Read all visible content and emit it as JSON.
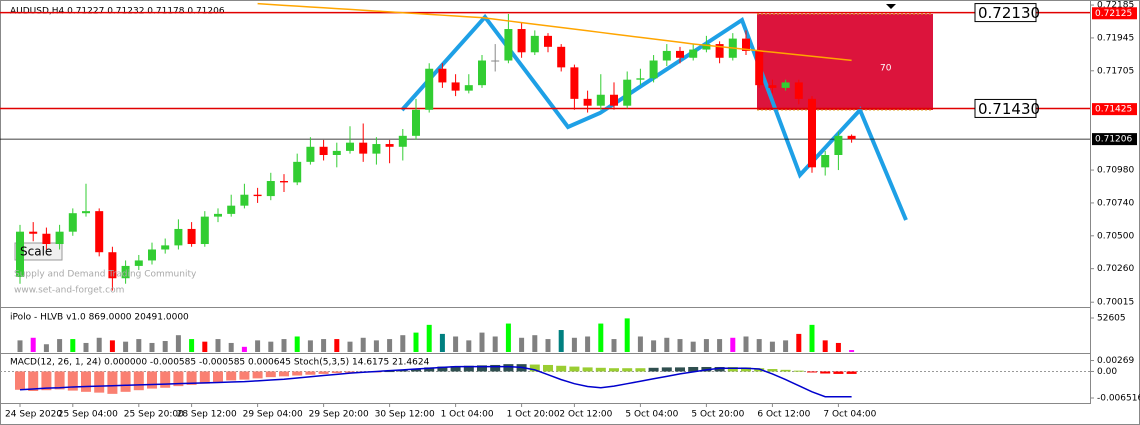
{
  "chart_data": [
    {
      "type": "candlestick",
      "title": "AUDUSD,H4  0.71227 0.71232 0.71178 0.71206",
      "categories": [
        "24 Sep 2020",
        null,
        null,
        null,
        "25 Sep 04:00",
        null,
        null,
        null,
        null,
        "25 Sep 20:00",
        null,
        null,
        null,
        "28 Sep 12:00",
        null,
        null,
        null,
        null,
        "29 Sep 04:00",
        null,
        null,
        null,
        null,
        "29 Sep 20:00",
        null,
        null,
        null,
        null,
        "30 Sep 12:00",
        null,
        null,
        null,
        null,
        "1 Oct 04:00",
        null,
        null,
        null,
        null,
        "1 Oct 20:00",
        null,
        null,
        null,
        "2 Oct 12:00",
        null,
        null,
        null,
        null,
        "5 Oct 04:00",
        null,
        null,
        null,
        null,
        "5 Oct 20:00",
        null,
        null,
        null,
        null,
        "6 Oct 12:00",
        null,
        null,
        null,
        null,
        "7 Oct 04:00",
        null
      ],
      "open": [
        0.702,
        0.7053,
        0.70515,
        0.7044,
        0.7053,
        0.70665,
        0.7068,
        0.7038,
        0.7019,
        0.7028,
        0.7032,
        0.704,
        0.7043,
        0.7055,
        0.7044,
        0.7064,
        0.7066,
        0.7072,
        0.708,
        0.7079,
        0.709,
        0.7089,
        0.7104,
        0.7115,
        0.7109,
        0.7112,
        0.7118,
        0.711,
        0.7117,
        0.7115,
        0.7123,
        0.7142,
        0.7172,
        0.7162,
        0.7156,
        0.716,
        0.7178,
        0.7178,
        0.7201,
        0.7184,
        0.7196,
        0.7188,
        0.7173,
        0.715,
        0.7145,
        0.7153,
        0.7145,
        0.7164,
        0.7165,
        0.7178,
        0.7185,
        0.718,
        0.7186,
        0.719,
        0.718,
        0.7194,
        0.7185,
        0.716,
        0.7158,
        0.7162,
        0.715,
        0.71,
        0.7109,
        0.7123
      ],
      "high": [
        0.7058,
        0.706,
        0.7056,
        0.7058,
        0.707,
        0.7088,
        0.707,
        0.7042,
        0.7032,
        0.7036,
        0.7045,
        0.7048,
        0.7062,
        0.706,
        0.7068,
        0.707,
        0.708,
        0.7088,
        0.7085,
        0.7096,
        0.7095,
        0.711,
        0.7122,
        0.712,
        0.7118,
        0.713,
        0.7132,
        0.7122,
        0.712,
        0.7128,
        0.715,
        0.7176,
        0.7176,
        0.7168,
        0.7168,
        0.7182,
        0.719,
        0.7212,
        0.7206,
        0.72,
        0.7198,
        0.719,
        0.7175,
        0.7156,
        0.7168,
        0.7162,
        0.717,
        0.7172,
        0.7182,
        0.719,
        0.7188,
        0.719,
        0.7196,
        0.7192,
        0.7198,
        0.72,
        0.7188,
        0.7164,
        0.7164,
        0.7164,
        0.7152,
        0.7112,
        0.7126,
        0.7124
      ],
      "low": [
        0.7015,
        0.7046,
        0.704,
        0.704,
        0.705,
        0.7064,
        0.7035,
        0.701,
        0.7015,
        0.7025,
        0.7029,
        0.7037,
        0.704,
        0.7042,
        0.7042,
        0.706,
        0.7064,
        0.707,
        0.7074,
        0.7076,
        0.7082,
        0.7087,
        0.7102,
        0.7105,
        0.71,
        0.711,
        0.7104,
        0.7102,
        0.7103,
        0.7105,
        0.712,
        0.714,
        0.7158,
        0.7152,
        0.7154,
        0.7158,
        0.717,
        0.7176,
        0.718,
        0.7182,
        0.7184,
        0.717,
        0.7142,
        0.714,
        0.7142,
        0.7142,
        0.7143,
        0.716,
        0.7162,
        0.7174,
        0.7176,
        0.7178,
        0.7184,
        0.7176,
        0.7178,
        0.7182,
        0.7158,
        0.7154,
        0.7156,
        0.7146,
        0.7096,
        0.7094,
        0.7098,
        0.7118
      ],
      "close": [
        0.7053,
        0.70515,
        0.7044,
        0.7053,
        0.70665,
        0.7068,
        0.7038,
        0.7019,
        0.7028,
        0.7032,
        0.704,
        0.7043,
        0.7055,
        0.7044,
        0.7064,
        0.7066,
        0.7072,
        0.708,
        0.7079,
        0.709,
        0.7089,
        0.7104,
        0.7115,
        0.7109,
        0.7112,
        0.7118,
        0.711,
        0.7117,
        0.7115,
        0.7123,
        0.7142,
        0.7172,
        0.7162,
        0.7156,
        0.716,
        0.7178,
        0.7178,
        0.7201,
        0.7184,
        0.7196,
        0.7188,
        0.7173,
        0.715,
        0.7145,
        0.7153,
        0.7145,
        0.7164,
        0.7165,
        0.7178,
        0.7185,
        0.718,
        0.7186,
        0.719,
        0.718,
        0.7194,
        0.7185,
        0.716,
        0.7158,
        0.7162,
        0.715,
        0.71,
        0.7109,
        0.7123,
        0.71206
      ],
      "up_color": "#32cd32",
      "down_color": "#ff0000",
      "ma": {
        "color": "#ffa500",
        "values": [
          null,
          null,
          null,
          null,
          null,
          null,
          null,
          null,
          null,
          null,
          null,
          null,
          null,
          null,
          null,
          null,
          null,
          null,
          0.72195,
          0.72189,
          0.72183,
          0.72177,
          0.72171,
          0.72165,
          0.72159,
          0.72153,
          0.72147,
          0.72141,
          0.72135,
          0.72129,
          0.72123,
          0.72117,
          0.72111,
          0.72105,
          0.72099,
          0.72093,
          0.72081,
          0.72069,
          0.72057,
          0.72045,
          0.72033,
          0.72021,
          0.72009,
          0.71997,
          0.71985,
          0.71973,
          0.71961,
          0.71949,
          0.71937,
          0.71925,
          0.71913,
          0.71901,
          0.71891,
          0.71881,
          0.71871,
          0.71861,
          0.71851,
          0.71841,
          0.71831,
          0.71821,
          0.71811,
          0.71801,
          0.71791,
          0.71781
        ]
      },
      "ylim": [
        0.6998,
        0.722
      ],
      "yticks": [
        0.72185,
        0.71945,
        0.71705,
        {
          "value": 0.7098,
          "label": "0.70980"
        },
        {
          "value": 0.7074,
          "label": "0.70740"
        },
        {
          "value": 0.705,
          "label": "0.70500"
        },
        {
          "value": 0.7026,
          "label": "0.70260"
        },
        0.70015
      ],
      "price_tags": [
        {
          "value": 0.72125,
          "color": "#ff0000"
        },
        {
          "value": 0.71425,
          "color": "#ff0000"
        },
        {
          "value": 0.71206,
          "color": "#000000"
        }
      ],
      "levels": [
        {
          "value": 0.7213,
          "label": "0.72130"
        },
        {
          "value": 0.7143,
          "label": "0.71430"
        }
      ],
      "annotations": [
        "Scale",
        "Supply and Demand Trading Community",
        "www.set-and-forget.com",
        "70"
      ]
    },
    {
      "type": "bar",
      "title": "iPolo - HLVB v1.0 869.0000 20491.0000",
      "values": [
        18000,
        22000,
        12000,
        20000,
        20000,
        14000,
        22000,
        18000,
        16000,
        20000,
        14000,
        17000,
        26000,
        20000,
        16000,
        20000,
        14000,
        8000,
        18000,
        16000,
        20000,
        24000,
        18000,
        20000,
        20000,
        16000,
        22000,
        18000,
        20000,
        26000,
        30000,
        42000,
        28000,
        24000,
        18000,
        30000,
        24000,
        44000,
        22000,
        26000,
        20000,
        34000,
        22000,
        24000,
        44000,
        20000,
        52000,
        24000,
        18000,
        22000,
        20000,
        16000,
        20000,
        20000,
        22000,
        24000,
        20000,
        16000,
        18000,
        28000,
        42000,
        18000,
        14000,
        3000
      ],
      "colors": [
        "#808080",
        "#ff00ff",
        "#808080",
        "#808080",
        "#00ff00",
        "#808080",
        "#808080",
        "#ff0000",
        "#808080",
        "#808080",
        "#808080",
        "#808080",
        "#808080",
        "#00ff00",
        "#ff0000",
        "#808080",
        "#808080",
        "#ff00ff",
        "#808080",
        "#808080",
        "#808080",
        "#00ff00",
        "#808080",
        "#808080",
        "#ff0000",
        "#808080",
        "#808080",
        "#808080",
        "#808080",
        "#808080",
        "#00ff00",
        "#00ff00",
        "#008080",
        "#808080",
        "#808080",
        "#808080",
        "#808080",
        "#00ff00",
        "#808080",
        "#808080",
        "#808080",
        "#008080",
        "#808080",
        "#808080",
        "#00ff00",
        "#808080",
        "#00ff00",
        "#808080",
        "#808080",
        "#808080",
        "#808080",
        "#808080",
        "#808080",
        "#808080",
        "#ff00ff",
        "#808080",
        "#808080",
        "#808080",
        "#808080",
        "#ff0000",
        "#00ff00",
        "#ff0000",
        "#ff0000",
        "#ff00ff"
      ],
      "ylim": [
        0,
        52605
      ],
      "yticks": [
        52605
      ]
    },
    {
      "type": "macd",
      "title": "MACD(12, 26, 1, 24) 0.000000 -0.000585 -0.000585 0.000645  Stoch(5,3,5) 14.6175 21.4624",
      "values": [
        -0.0045,
        -0.0048,
        -0.0046,
        -0.0044,
        -0.0047,
        -0.005,
        -0.0052,
        -0.0055,
        -0.005,
        -0.0046,
        -0.0042,
        -0.004,
        -0.0036,
        -0.0033,
        -0.003,
        -0.0026,
        -0.0022,
        -0.002,
        -0.0017,
        -0.0014,
        -0.0012,
        -0.001,
        -0.0008,
        -0.0006,
        -0.0004,
        -0.0003,
        -0.0002,
        -0.0001,
        0.0001,
        0.0003,
        0.0005,
        0.001,
        0.0012,
        0.0013,
        0.0014,
        0.0015,
        0.0016,
        0.0018,
        0.0018,
        0.0017,
        0.0016,
        0.0014,
        0.0012,
        0.001,
        0.0009,
        0.0008,
        0.0008,
        0.0008,
        0.0009,
        0.001,
        0.001,
        0.0011,
        0.0011,
        0.0011,
        0.0011,
        0.001,
        0.0008,
        0.0006,
        0.0004,
        0.0002,
        -0.0002,
        -0.0005,
        -0.0006,
        -0.0006
      ],
      "colors": [
        "#fa8072",
        "#fa8072",
        "#fa8072",
        "#fa8072",
        "#fa8072",
        "#fa8072",
        "#fa8072",
        "#fa8072",
        "#fa8072",
        "#fa8072",
        "#fa8072",
        "#fa8072",
        "#fa8072",
        "#fa8072",
        "#fa8072",
        "#fa8072",
        "#fa8072",
        "#fa8072",
        "#fa8072",
        "#fa8072",
        "#fa8072",
        "#fa8072",
        "#fa8072",
        "#fa8072",
        "#fa8072",
        "#fa8072",
        "#fa8072",
        "#fa8072",
        "#2f4f4f",
        "#2f4f4f",
        "#2f4f4f",
        "#2f4f4f",
        "#2f4f4f",
        "#2f4f4f",
        "#2f4f4f",
        "#2f4f4f",
        "#2f4f4f",
        "#2f4f4f",
        "#2f4f4f",
        "#9acd32",
        "#9acd32",
        "#9acd32",
        "#9acd32",
        "#9acd32",
        "#9acd32",
        "#9acd32",
        "#9acd32",
        "#9acd32",
        "#2f4f4f",
        "#2f4f4f",
        "#2f4f4f",
        "#2f4f4f",
        "#2f4f4f",
        "#2f4f4f",
        "#9acd32",
        "#9acd32",
        "#9acd32",
        "#9acd32",
        "#9acd32",
        "#9acd32",
        "#ff0000",
        "#ff0000",
        "#ff0000",
        "#ff0000"
      ],
      "signal": {
        "color": "#0000cd",
        "values": [
          -0.0045,
          -0.0043,
          -0.0041,
          -0.004,
          -0.0038,
          -0.0037,
          -0.0036,
          -0.0035,
          -0.0034,
          -0.0033,
          -0.0032,
          -0.0031,
          -0.003,
          -0.0029,
          -0.0028,
          -0.0027,
          -0.0026,
          -0.0025,
          -0.0023,
          -0.0021,
          -0.0019,
          -0.0016,
          -0.0013,
          -0.001,
          -0.0007,
          -0.0004,
          -0.0002,
          0,
          0.0002,
          0.0004,
          0.0006,
          0.0008,
          0.001,
          0.0012,
          0.0012,
          0.0012,
          0.0012,
          0.0012,
          0.001,
          0.0004,
          -0.0008,
          -0.002,
          -0.003,
          -0.0037,
          -0.004,
          -0.0036,
          -0.003,
          -0.0024,
          -0.0018,
          -0.0012,
          -0.0006,
          -0.0001,
          0.0004,
          0.0008,
          0.0008,
          0.0008,
          0.0006,
          -0.0006,
          -0.002,
          -0.0035,
          -0.005,
          -0.0062,
          -0.0062,
          -0.0062
        ]
      },
      "ylim": [
        -0.0075,
        0.0038
      ],
      "yticks": [
        0.00269,
        {
          "value": 0,
          "label": "0.00"
        },
        -0.006516
      ]
    }
  ]
}
